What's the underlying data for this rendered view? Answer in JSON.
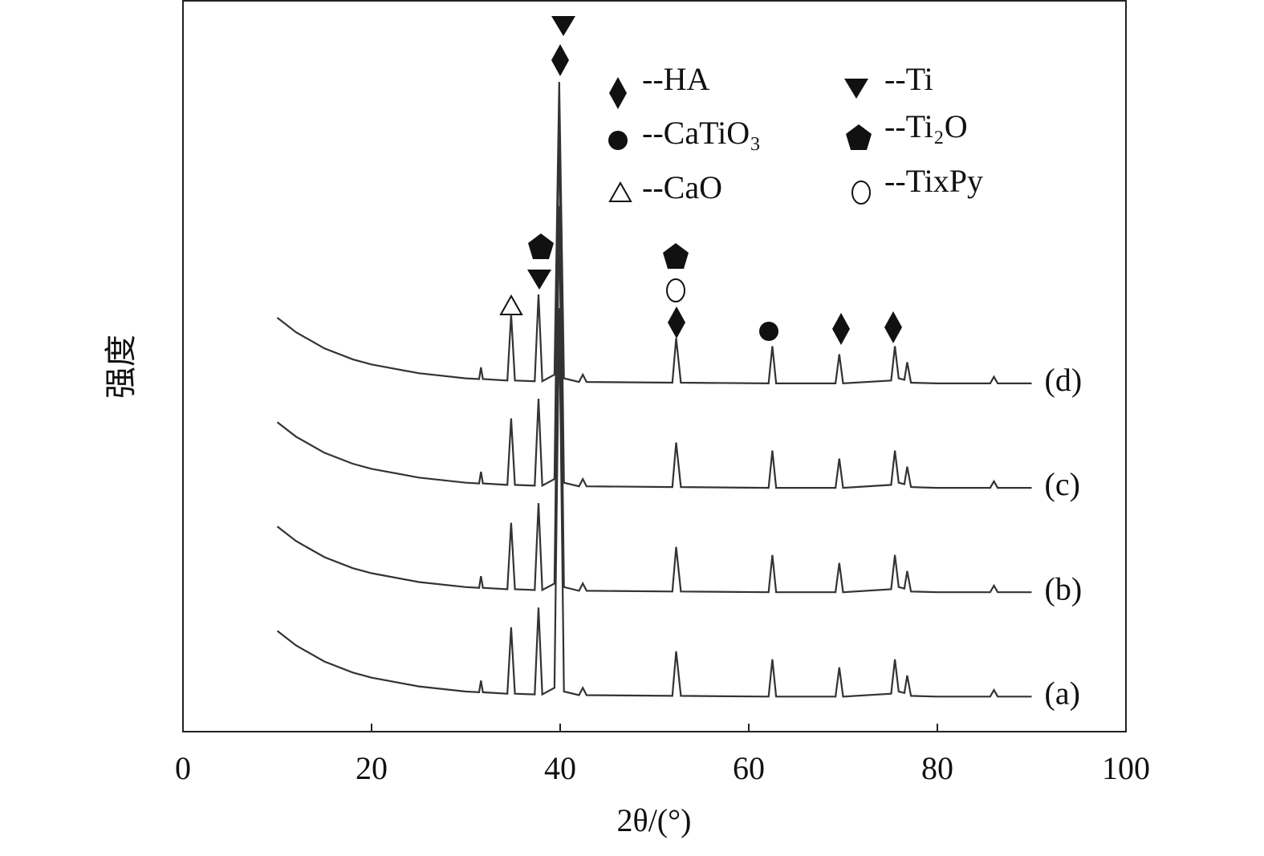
{
  "chart_data": {
    "type": "line",
    "x_label": "2θ/(°)",
    "y_label": "强度",
    "x": [
      10,
      12,
      15,
      18,
      20,
      25,
      30,
      31.4,
      31.6,
      31.8,
      34.4,
      34.8,
      35.2,
      37.3,
      37.7,
      38.1,
      39.4,
      39.9,
      40.4,
      42,
      42.4,
      42.8,
      51.9,
      52.3,
      52.8,
      62.1,
      62.5,
      62.9,
      69.2,
      69.6,
      70,
      75.1,
      75.5,
      75.9,
      76.5,
      76.8,
      77.2,
      80,
      85.6,
      86,
      86.4,
      90
    ],
    "series": [
      {
        "name": "(a)",
        "color": "#333333",
        "values": [
          13.8,
          11.8,
          9.6,
          8.1,
          7.4,
          6.2,
          5.5,
          5.4,
          7.0,
          5.4,
          5.2,
          14.3,
          5.2,
          5.1,
          17.0,
          5.1,
          6.0,
          58,
          5.5,
          5.0,
          6.0,
          5.0,
          4.9,
          11.0,
          4.9,
          4.8,
          9.9,
          4.8,
          4.8,
          8.8,
          4.8,
          5.2,
          9.9,
          5.5,
          5.3,
          7.7,
          4.9,
          4.8,
          4.8,
          5.7,
          4.8,
          4.8
        ]
      },
      {
        "name": "(b)",
        "color": "#333333",
        "values": [
          28.1,
          26.1,
          23.9,
          22.4,
          21.7,
          20.5,
          19.8,
          19.7,
          21.3,
          19.7,
          19.5,
          28.6,
          19.5,
          19.4,
          31.3,
          19.4,
          20.3,
          72,
          19.8,
          19.3,
          20.3,
          19.3,
          19.2,
          25.3,
          19.2,
          19.1,
          24.2,
          19.1,
          19.1,
          23.1,
          19.1,
          19.5,
          24.2,
          19.8,
          19.6,
          22.0,
          19.2,
          19.1,
          19.1,
          20.0,
          19.1,
          19.1
        ]
      },
      {
        "name": "(c)",
        "color": "#333333",
        "values": [
          42.4,
          40.4,
          38.2,
          36.7,
          36.0,
          34.8,
          34.1,
          34.0,
          35.6,
          34.0,
          33.8,
          42.9,
          33.8,
          33.7,
          45.6,
          33.7,
          34.6,
          84,
          34.1,
          33.6,
          34.6,
          33.6,
          33.5,
          39.6,
          33.5,
          33.4,
          38.5,
          33.4,
          33.4,
          37.4,
          33.4,
          33.8,
          38.5,
          34.1,
          33.9,
          36.3,
          33.5,
          33.4,
          33.4,
          34.3,
          33.4,
          33.4
        ]
      },
      {
        "name": "(d)",
        "color": "#333333",
        "values": [
          56.7,
          54.7,
          52.5,
          51.0,
          50.3,
          49.1,
          48.4,
          48.3,
          49.9,
          48.3,
          48.1,
          57.2,
          48.1,
          48.0,
          59.9,
          48.0,
          48.9,
          89,
          48.4,
          47.9,
          48.9,
          47.9,
          47.8,
          53.9,
          47.8,
          47.7,
          52.8,
          47.7,
          47.7,
          51.7,
          47.7,
          48.1,
          52.8,
          48.4,
          48.2,
          50.6,
          47.8,
          47.7,
          47.7,
          48.6,
          47.7,
          47.7
        ]
      }
    ],
    "xlim": [
      0,
      100
    ],
    "xticks": [
      0,
      20,
      40,
      60,
      80,
      100
    ],
    "ylim": [
      0,
      100
    ],
    "phase_legend": [
      "--HA",
      "--Ti",
      "--CaTiO₃",
      "--Ti₂O",
      "--CaO",
      "--TixPy"
    ]
  }
}
